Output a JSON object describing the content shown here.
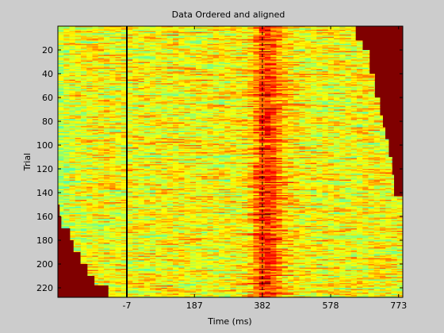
{
  "chart_data": {
    "type": "heatmap",
    "title": "Data Ordered and aligned",
    "xlabel": "Time (ms)",
    "ylabel": "Trial",
    "xticks": [
      -7,
      187,
      382,
      578,
      773
    ],
    "yticks": [
      20,
      40,
      60,
      80,
      100,
      120,
      140,
      160,
      180,
      200,
      220
    ],
    "xlim": [
      -205,
      785
    ],
    "ylim": [
      0,
      228
    ],
    "n_trials": 228,
    "colormap": "jet",
    "mask_color": "#800000",
    "alignment_line_ms": -7,
    "reference_line_ms": 382,
    "band_center_ms": 382,
    "left_mask_end_ms": [
      [
        150,
        -205
      ],
      [
        160,
        -200
      ],
      [
        170,
        -195
      ],
      [
        180,
        -170
      ],
      [
        190,
        -160
      ],
      [
        200,
        -140
      ],
      [
        210,
        -120
      ],
      [
        218,
        -100
      ],
      [
        228,
        -60
      ]
    ],
    "right_mask_start_ms": [
      [
        0,
        650
      ],
      [
        12,
        670
      ],
      [
        20,
        690
      ],
      [
        40,
        705
      ],
      [
        60,
        720
      ],
      [
        75,
        728
      ],
      [
        85,
        735
      ],
      [
        95,
        745
      ],
      [
        110,
        755
      ],
      [
        125,
        760
      ],
      [
        143,
        770
      ]
    ]
  }
}
